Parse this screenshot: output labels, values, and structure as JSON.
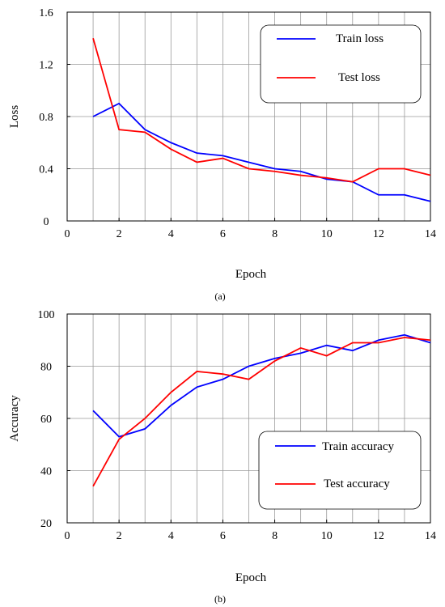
{
  "figure": {
    "caption_a": "(a)",
    "caption_b": "(b)"
  },
  "chart_data": [
    {
      "type": "line",
      "panel": "a",
      "title": "",
      "xlabel": "Epoch",
      "ylabel": "Loss",
      "xlim": [
        0,
        14
      ],
      "ylim": [
        0,
        1.6
      ],
      "xticks": [
        "0",
        "2",
        "4",
        "6",
        "8",
        "10",
        "12",
        "14"
      ],
      "yticks": [
        "0",
        "0.4",
        "0.8",
        "1.2",
        "1.6"
      ],
      "grid": true,
      "legend_position": "top-right",
      "x": [
        1,
        2,
        3,
        4,
        5,
        6,
        7,
        8,
        9,
        10,
        11,
        12,
        13,
        14
      ],
      "series": [
        {
          "name": "Train loss",
          "color": "#0000ff",
          "values": [
            0.8,
            0.9,
            0.7,
            0.6,
            0.52,
            0.5,
            0.45,
            0.4,
            0.38,
            0.32,
            0.3,
            0.2,
            0.2,
            0.15
          ]
        },
        {
          "name": "Test loss",
          "color": "#ff0000",
          "values": [
            1.4,
            0.7,
            0.68,
            0.55,
            0.45,
            0.48,
            0.4,
            0.38,
            0.35,
            0.33,
            0.3,
            0.4,
            0.4,
            0.35
          ]
        }
      ]
    },
    {
      "type": "line",
      "panel": "b",
      "title": "",
      "xlabel": "Epoch",
      "ylabel": "Accuracy",
      "xlim": [
        0,
        14
      ],
      "ylim": [
        20,
        100
      ],
      "xticks": [
        "0",
        "2",
        "4",
        "6",
        "8",
        "10",
        "12",
        "14"
      ],
      "yticks": [
        "20",
        "40",
        "60",
        "80",
        "100"
      ],
      "grid": true,
      "legend_position": "bottom-right",
      "x": [
        1,
        2,
        3,
        4,
        5,
        6,
        7,
        8,
        9,
        10,
        11,
        12,
        13,
        14
      ],
      "series": [
        {
          "name": "Train accuracy",
          "color": "#0000ff",
          "values": [
            63,
            53,
            56,
            65,
            72,
            75,
            80,
            83,
            85,
            88,
            86,
            90,
            92,
            89
          ]
        },
        {
          "name": "Test accuracy",
          "color": "#ff0000",
          "values": [
            34,
            52,
            60,
            70,
            78,
            77,
            75,
            82,
            87,
            84,
            89,
            89,
            91,
            90
          ]
        }
      ]
    }
  ]
}
